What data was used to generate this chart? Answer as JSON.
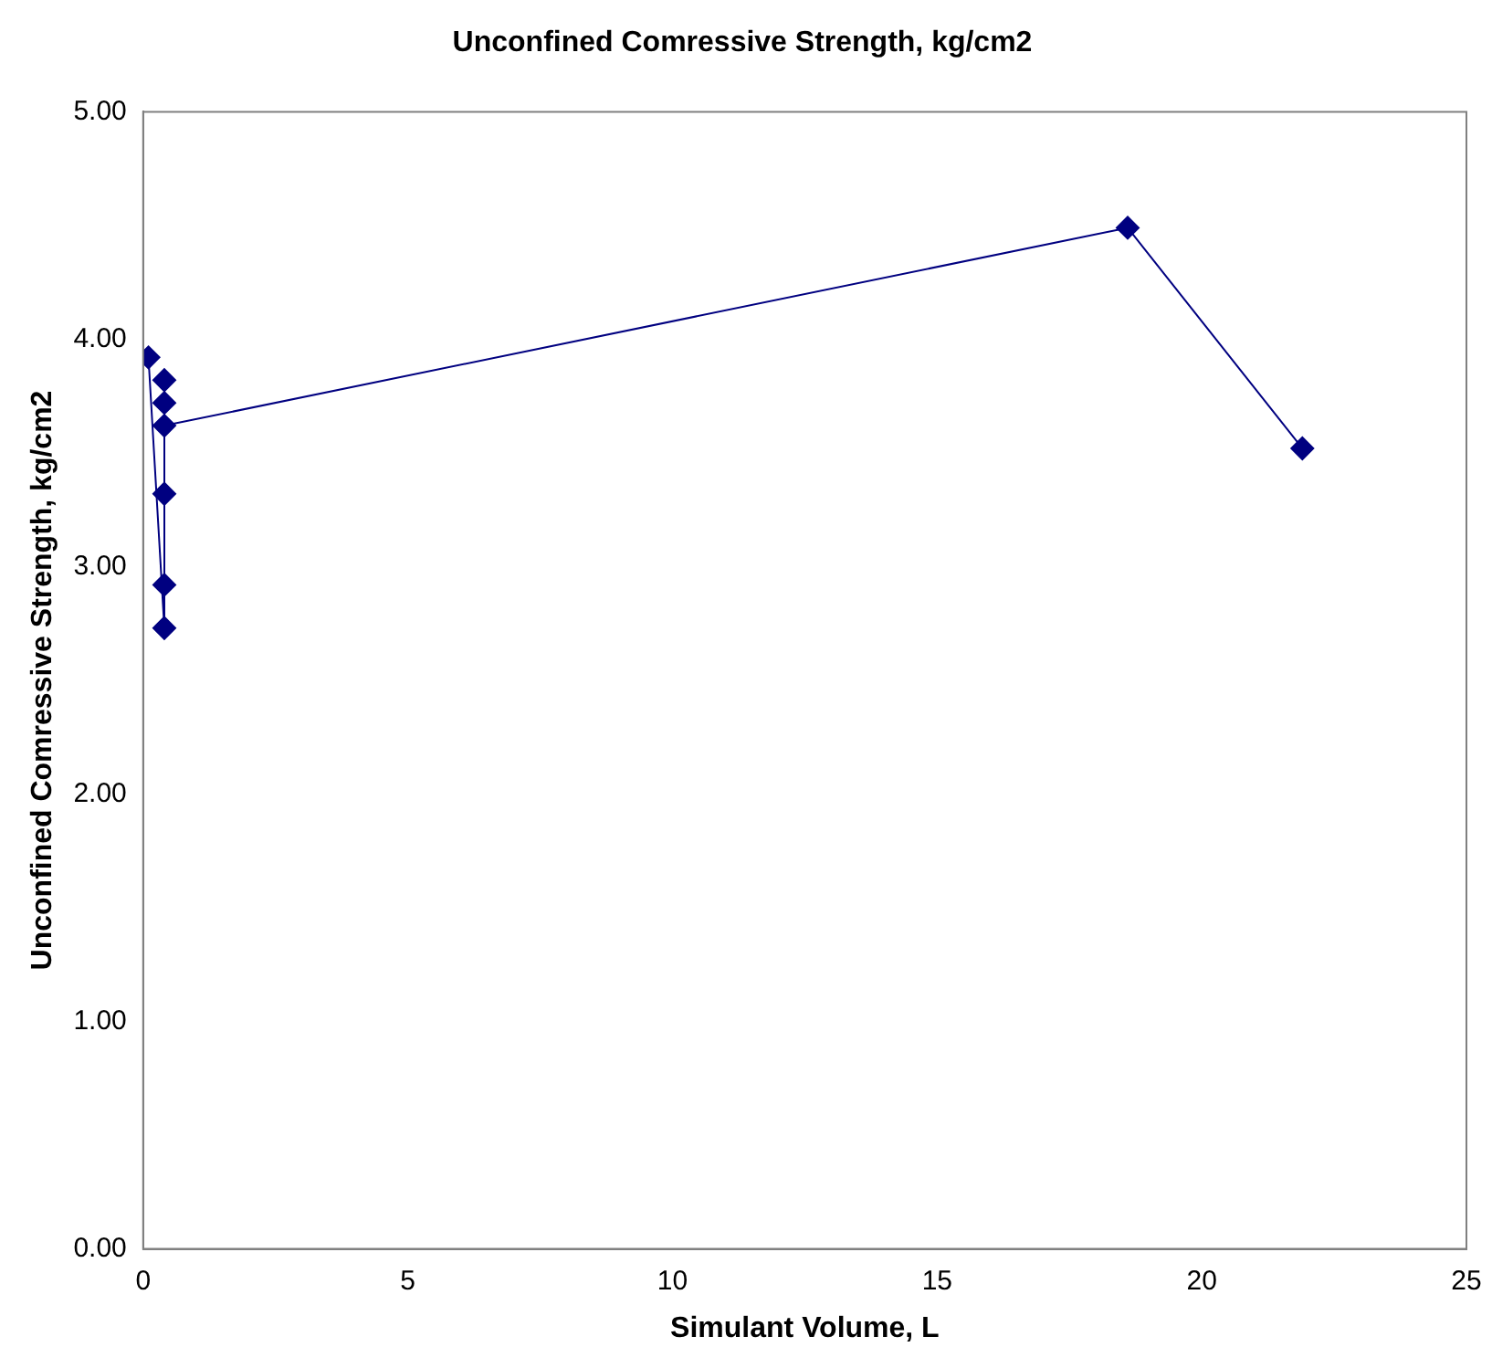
{
  "chart_data": {
    "type": "line",
    "title": "Unconfined Comressive Strength, kg/cm2",
    "xlabel": "Simulant Volume, L",
    "ylabel": "Unconfined Comressive Strength, kg/cm2",
    "series": [
      {
        "color": "#000080",
        "x": [
          0.1,
          0.4,
          0.4,
          0.4,
          0.4,
          0.4,
          0.4,
          18.6,
          21.9
        ],
        "values": [
          3.92,
          2.73,
          2.92,
          3.32,
          3.82,
          3.72,
          3.62,
          4.49,
          3.52
        ]
      }
    ],
    "xlim": [
      0,
      25
    ],
    "xticks": [
      0,
      5,
      10,
      15,
      20,
      25
    ],
    "ylim": [
      0,
      5
    ],
    "yticks": [
      {
        "value": 0,
        "label": "0.00"
      },
      {
        "value": 1,
        "label": "1.00"
      },
      {
        "value": 2,
        "label": "2.00"
      },
      {
        "value": 3,
        "label": "3.00"
      },
      {
        "value": 4,
        "label": "4.00"
      },
      {
        "value": 5,
        "label": "5.00"
      }
    ],
    "grid": false,
    "legend": false,
    "marker": "diamond",
    "line_style": "solid"
  }
}
